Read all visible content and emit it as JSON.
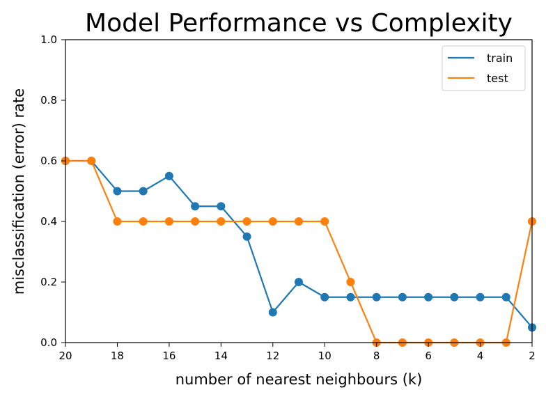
{
  "chart_data": {
    "type": "line",
    "title": "Model Performance vs Complexity",
    "xlabel": "number of nearest neighbours (k)",
    "ylabel": "misclassification (error) rate",
    "xlim": [
      20,
      2
    ],
    "ylim": [
      0,
      1
    ],
    "x_inverted": true,
    "grid": false,
    "legend": "top-right",
    "xticks": [
      20,
      18,
      16,
      14,
      12,
      10,
      8,
      6,
      4,
      2
    ],
    "yticks": [
      0.0,
      0.2,
      0.4,
      0.6,
      0.8,
      1.0
    ],
    "ytick_labels": [
      "0.0",
      "0.2",
      "0.4",
      "0.6",
      "0.8",
      "1.0"
    ],
    "x": [
      20,
      19,
      18,
      17,
      16,
      15,
      14,
      13,
      12,
      11,
      10,
      9,
      8,
      7,
      6,
      5,
      4,
      3,
      2
    ],
    "series": [
      {
        "name": "train",
        "color": "#1f77b4",
        "values": [
          0.6,
          0.6,
          0.5,
          0.5,
          0.55,
          0.45,
          0.45,
          0.35,
          0.1,
          0.2,
          0.15,
          0.15,
          0.15,
          0.15,
          0.15,
          0.15,
          0.15,
          0.15,
          0.05
        ]
      },
      {
        "name": "test",
        "color": "#ff7f0e",
        "values": [
          0.6,
          0.6,
          0.4,
          0.4,
          0.4,
          0.4,
          0.4,
          0.4,
          0.4,
          0.4,
          0.4,
          0.2,
          0.0,
          0.0,
          0.0,
          0.0,
          0.0,
          0.0,
          0.4
        ]
      }
    ]
  }
}
